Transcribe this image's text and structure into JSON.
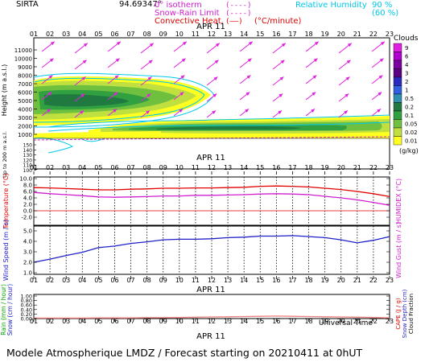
{
  "header": {
    "station": "SIRTA",
    "coord": "94.69347°",
    "legend_left": [
      {
        "label": "0° isotherm",
        "sample": "(----)",
        "color": "#d020d0"
      },
      {
        "label": "Snow-Rain Limit",
        "sample": "(----)",
        "color": "#d020d0"
      },
      {
        "label": "Convective Heat.",
        "sample": "(——)",
        "unit": "(°C/minute)",
        "color": "#e00000"
      }
    ],
    "legend_right": [
      {
        "label": "Relative Humidity",
        "value": "90 %",
        "color": "#00c8e8"
      },
      {
        "label": "",
        "value": "(60 %)",
        "color": "#00c8e8"
      }
    ]
  },
  "hours": [
    "01",
    "02",
    "03",
    "04",
    "05",
    "06",
    "07",
    "08",
    "09",
    "10",
    "11",
    "12",
    "13",
    "14",
    "15",
    "16",
    "17",
    "18",
    "19",
    "20",
    "21",
    "22",
    "23"
  ],
  "date_label": "APR 11",
  "clouds_legend": {
    "title": "Clouds",
    "unit": "(g/kg)",
    "levels": [
      "9",
      "6",
      "4",
      "3",
      "2",
      "1",
      "0.5",
      "0.2",
      "0.1",
      "0.05",
      "0.02",
      "0.01"
    ],
    "colors": [
      "#e020e0",
      "#b000d0",
      "#7a00a0",
      "#5a0080",
      "#2a2ac0",
      "#3060e0",
      "#2f8fb0",
      "#207a40",
      "#30a040",
      "#70c040",
      "#c0e040",
      "#ffff20"
    ]
  },
  "cloud_panel": {
    "ylabel": "Height (m a.s.l.)",
    "ylabel_low": "Up to 200 m a.s.l.",
    "ticks_upper": [
      "11000",
      "10000",
      "9000",
      "8000",
      "7000",
      "6000",
      "5000",
      "4000",
      "3000",
      "2000",
      "1000"
    ],
    "ticks_lower": [
      "150",
      "140",
      "130",
      "120",
      "110",
      "100"
    ]
  },
  "temp_panel": {
    "ylabel": "Temperature (°C)",
    "ylabel_right": "HUMIDEX (°C)",
    "ticks": [
      "10.0",
      "8.0",
      "6.0",
      "4.0",
      "2.0",
      "0.0",
      "-2.0"
    ]
  },
  "wind_panel": {
    "ylabel": "Wind Speed (m / s)",
    "ylabel_right": "Wind Gust (m / s)",
    "ticks": [
      "5.0",
      "4.0",
      "3.0",
      "2.0",
      "1.0"
    ]
  },
  "rain_panel": {
    "ylabel": "Rain (mm / hour)",
    "ylabel2": "Snow (cm / hour)",
    "ylabel_right": "CAPE (J / g)",
    "ylabel_right2": "Snow Depth (cm)",
    "ylabel_right3": "Cloud Fraction",
    "ticks": [
      "1.00",
      "0.80",
      "0.60",
      "0.40",
      "0.20",
      "0.00"
    ]
  },
  "footer": {
    "xlabel": "Universal Time",
    "title": "Modele Atmospherique LMDZ / Forecast starting on 20210411 at 0hUT"
  },
  "chart_data": [
    {
      "type": "heatmap",
      "title": "",
      "xlabel": "",
      "ylabel": "Height (m a.s.l.)",
      "ylim": [
        0,
        11500
      ],
      "colors": {
        "isotherm": "#d020d0",
        "rh90": "#00c8e8"
      },
      "note_layers": "cloud water content layers near 4000-6000 m (01-12 UT) and 1000-2500 m (05-23 UT)"
    },
    {
      "type": "line",
      "title": "",
      "xlabel": "",
      "ylabel": "Temperature (°C)",
      "ylim": [
        -2,
        10
      ],
      "x": [
        1,
        2,
        3,
        4,
        5,
        6,
        7,
        8,
        9,
        10,
        11,
        12,
        13,
        14,
        15,
        16,
        17,
        18,
        19,
        20,
        21,
        22,
        23
      ],
      "series": [
        {
          "values": [
            7.2,
            7.1,
            6.9,
            6.7,
            6.5,
            6.5,
            6.7,
            6.8,
            7.0,
            7.0,
            7.1,
            7.1,
            7.2,
            7.3,
            7.6,
            7.7,
            7.6,
            7.4,
            7.0,
            6.6,
            6.0,
            5.3,
            4.4
          ],
          "color": "#e00000"
        },
        {
          "values": [
            5.7,
            5.3,
            5.0,
            4.7,
            4.3,
            4.2,
            4.3,
            4.4,
            4.6,
            4.6,
            4.8,
            4.8,
            4.9,
            5.0,
            5.2,
            5.3,
            5.2,
            5.0,
            4.5,
            4.0,
            3.4,
            2.6,
            1.7
          ],
          "color": "#d020d0"
        }
      ]
    },
    {
      "type": "line",
      "title": "",
      "xlabel": "",
      "ylabel": "Wind Speed (m / s)",
      "ylim": [
        1,
        5
      ],
      "x": [
        1,
        2,
        3,
        4,
        5,
        6,
        7,
        8,
        9,
        10,
        11,
        12,
        13,
        14,
        15,
        16,
        17,
        18,
        19,
        20,
        21,
        22,
        23
      ],
      "series": [
        {
          "values": [
            2.0,
            2.3,
            2.65,
            2.95,
            3.4,
            3.55,
            3.8,
            3.95,
            4.15,
            4.2,
            4.2,
            4.25,
            4.35,
            4.4,
            4.5,
            4.5,
            4.55,
            4.45,
            4.35,
            4.15,
            3.85,
            4.1,
            4.45
          ],
          "color": "#2020c8"
        }
      ]
    },
    {
      "type": "line",
      "title": "",
      "xlabel": "Universal Time",
      "ylabel": "Rain (mm / hour)",
      "ylim": [
        0,
        1
      ],
      "x": [
        1,
        2,
        3,
        4,
        5,
        6,
        7,
        8,
        9,
        10,
        11,
        12,
        13,
        14,
        15,
        16,
        17,
        18,
        19,
        20,
        21,
        22,
        23
      ],
      "series": [
        {
          "values": [
            0.02,
            0.02,
            0.02,
            0.02,
            0.03,
            0.03,
            0.03,
            0.04,
            0.04,
            0.05,
            0.06,
            0.07,
            0.08,
            0.09,
            0.1,
            0.11,
            0.1,
            0.09,
            0.08,
            0.07,
            0.06,
            0.05,
            0.03
          ],
          "color": "#f08080"
        }
      ]
    }
  ]
}
